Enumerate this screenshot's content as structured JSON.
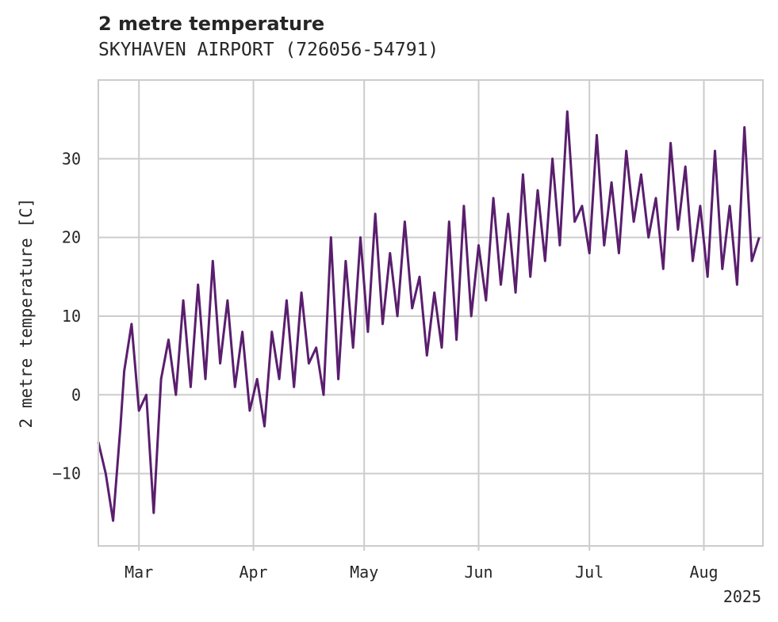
{
  "chart_data": {
    "type": "line",
    "title": "2 metre temperature",
    "subtitle": "SKYHAVEN AIRPORT (726056-54791)",
    "xlabel": "",
    "ylabel": "2 metre temperature [C]",
    "x_tick_labels": [
      "Mar",
      "Apr",
      "May",
      "Jun",
      "Jul",
      "Aug"
    ],
    "x_tick_dates": [
      "2025-03-01",
      "2025-04-01",
      "2025-05-01",
      "2025-06-01",
      "2025-07-01",
      "2025-08-01"
    ],
    "x_offset_label": "2025",
    "y_ticks": [
      -10,
      0,
      10,
      20,
      30
    ],
    "xlim": [
      "2025-02-18",
      "2025-08-17"
    ],
    "ylim": [
      -19.2,
      40
    ],
    "grid": true,
    "line_color": "#5a1e6e",
    "series": [
      {
        "name": "",
        "x": [
          "2025-02-18",
          "2025-02-20",
          "2025-02-22",
          "2025-02-24",
          "2025-02-25",
          "2025-02-27",
          "2025-03-01",
          "2025-03-03",
          "2025-03-05",
          "2025-03-07",
          "2025-03-09",
          "2025-03-11",
          "2025-03-13",
          "2025-03-15",
          "2025-03-17",
          "2025-03-19",
          "2025-03-21",
          "2025-03-23",
          "2025-03-25",
          "2025-03-27",
          "2025-03-29",
          "2025-03-31",
          "2025-04-02",
          "2025-04-04",
          "2025-04-06",
          "2025-04-08",
          "2025-04-10",
          "2025-04-12",
          "2025-04-14",
          "2025-04-16",
          "2025-04-18",
          "2025-04-20",
          "2025-04-22",
          "2025-04-24",
          "2025-04-26",
          "2025-04-28",
          "2025-04-30",
          "2025-05-02",
          "2025-05-04",
          "2025-05-06",
          "2025-05-08",
          "2025-05-10",
          "2025-05-12",
          "2025-05-14",
          "2025-05-16",
          "2025-05-18",
          "2025-05-20",
          "2025-05-22",
          "2025-05-24",
          "2025-05-26",
          "2025-05-28",
          "2025-05-30",
          "2025-06-01",
          "2025-06-03",
          "2025-06-05",
          "2025-06-07",
          "2025-06-09",
          "2025-06-11",
          "2025-06-13",
          "2025-06-15",
          "2025-06-17",
          "2025-06-19",
          "2025-06-21",
          "2025-06-23",
          "2025-06-25",
          "2025-06-27",
          "2025-06-29",
          "2025-07-01",
          "2025-07-03",
          "2025-07-05",
          "2025-07-07",
          "2025-07-09",
          "2025-07-11",
          "2025-07-13",
          "2025-07-15",
          "2025-07-17",
          "2025-07-19",
          "2025-07-21",
          "2025-07-23",
          "2025-07-25",
          "2025-07-27",
          "2025-07-29",
          "2025-07-31",
          "2025-08-02",
          "2025-08-04",
          "2025-08-06",
          "2025-08-08",
          "2025-08-10",
          "2025-08-12",
          "2025-08-14",
          "2025-08-16"
        ],
        "values": [
          -6,
          -10,
          -16,
          -4,
          3,
          9,
          -2,
          0,
          -15,
          2,
          7,
          0,
          12,
          1,
          14,
          2,
          17,
          4,
          12,
          1,
          8,
          -2,
          2,
          -4,
          8,
          2,
          12,
          1,
          13,
          4,
          6,
          0,
          20,
          2,
          17,
          6,
          20,
          8,
          23,
          9,
          18,
          10,
          22,
          11,
          15,
          5,
          13,
          6,
          22,
          7,
          24,
          10,
          19,
          12,
          25,
          14,
          23,
          13,
          28,
          15,
          26,
          17,
          30,
          19,
          36,
          22,
          24,
          18,
          33,
          19,
          27,
          18,
          31,
          22,
          28,
          20,
          25,
          16,
          32,
          21,
          29,
          17,
          24,
          15,
          31,
          16,
          24,
          14,
          34,
          17,
          20
        ]
      }
    ]
  }
}
